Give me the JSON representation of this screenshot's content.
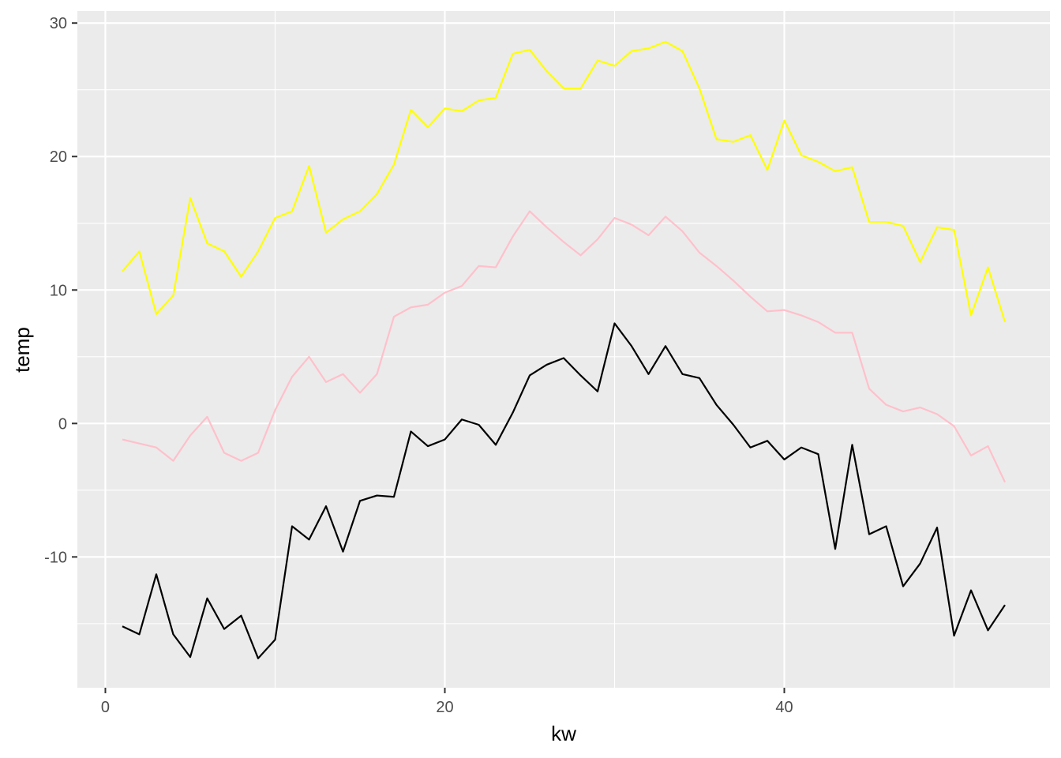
{
  "chart_data": {
    "type": "line",
    "xlabel": "kw",
    "ylabel": "temp",
    "xlim": [
      -1.65,
      55.65
    ],
    "ylim": [
      -19.8,
      30.9
    ],
    "x_ticks": [
      0,
      20,
      40
    ],
    "y_ticks": [
      -10,
      0,
      10,
      20,
      30
    ],
    "x_tick_labels": [
      "0",
      "20",
      "40"
    ],
    "y_tick_labels": [
      "-10",
      "0",
      "10",
      "20",
      "30"
    ],
    "grid": true,
    "legend": "none",
    "background": "#ebebeb",
    "x": [
      1,
      2,
      3,
      4,
      5,
      6,
      7,
      8,
      9,
      10,
      11,
      12,
      13,
      14,
      15,
      16,
      17,
      18,
      19,
      20,
      21,
      22,
      23,
      24,
      25,
      26,
      27,
      28,
      29,
      30,
      31,
      32,
      33,
      34,
      35,
      36,
      37,
      38,
      39,
      40,
      41,
      42,
      43,
      44,
      45,
      46,
      47,
      48,
      49,
      50,
      51,
      52,
      53
    ],
    "series": [
      {
        "color": "#ffff00",
        "values": [
          11.4,
          12.9,
          8.2,
          9.6,
          16.9,
          13.5,
          12.9,
          11.0,
          12.9,
          15.4,
          15.9,
          19.3,
          14.3,
          15.3,
          15.9,
          17.2,
          19.4,
          23.5,
          22.2,
          23.6,
          23.4,
          24.2,
          24.4,
          27.7,
          28.0,
          26.4,
          25.1,
          25.1,
          27.2,
          26.8,
          27.9,
          28.1,
          28.6,
          27.9,
          25.1,
          21.3,
          21.1,
          21.6,
          19.0,
          22.7,
          20.1,
          19.6,
          18.9,
          19.2,
          15.1,
          15.1,
          14.8,
          12.1,
          14.7,
          14.5,
          8.1,
          11.7,
          7.6
        ]
      },
      {
        "color": "#ffc0cb",
        "values": [
          -1.2,
          -1.5,
          -1.8,
          -2.8,
          -0.9,
          0.5,
          -2.2,
          -2.8,
          -2.2,
          1.0,
          3.5,
          5.0,
          3.1,
          3.7,
          2.3,
          3.7,
          8.0,
          8.7,
          8.9,
          9.8,
          10.3,
          11.8,
          11.7,
          14.0,
          15.9,
          14.7,
          13.6,
          12.6,
          13.8,
          15.4,
          14.9,
          14.1,
          15.5,
          14.4,
          12.8,
          11.8,
          10.7,
          9.5,
          8.4,
          8.5,
          8.1,
          7.6,
          6.8,
          6.8,
          2.6,
          1.4,
          0.9,
          1.2,
          0.7,
          -0.2,
          -2.4,
          -1.7,
          -4.4
        ]
      },
      {
        "color": "#000000",
        "values": [
          -15.2,
          -15.8,
          -11.3,
          -15.8,
          -17.5,
          -13.1,
          -15.4,
          -14.4,
          -17.6,
          -16.2,
          -7.7,
          -8.7,
          -6.2,
          -9.6,
          -5.8,
          -5.4,
          -5.5,
          -0.6,
          -1.7,
          -1.2,
          0.3,
          -0.1,
          -1.6,
          0.8,
          3.6,
          4.4,
          4.9,
          3.6,
          2.4,
          7.5,
          5.8,
          3.7,
          5.8,
          3.7,
          3.4,
          1.4,
          -0.1,
          -1.8,
          -1.3,
          -2.7,
          -1.8,
          -2.3,
          -9.4,
          -1.6,
          -8.3,
          -7.7,
          -12.2,
          -10.5,
          -7.8,
          -15.9,
          -12.5,
          -15.5,
          -13.6
        ]
      }
    ]
  }
}
